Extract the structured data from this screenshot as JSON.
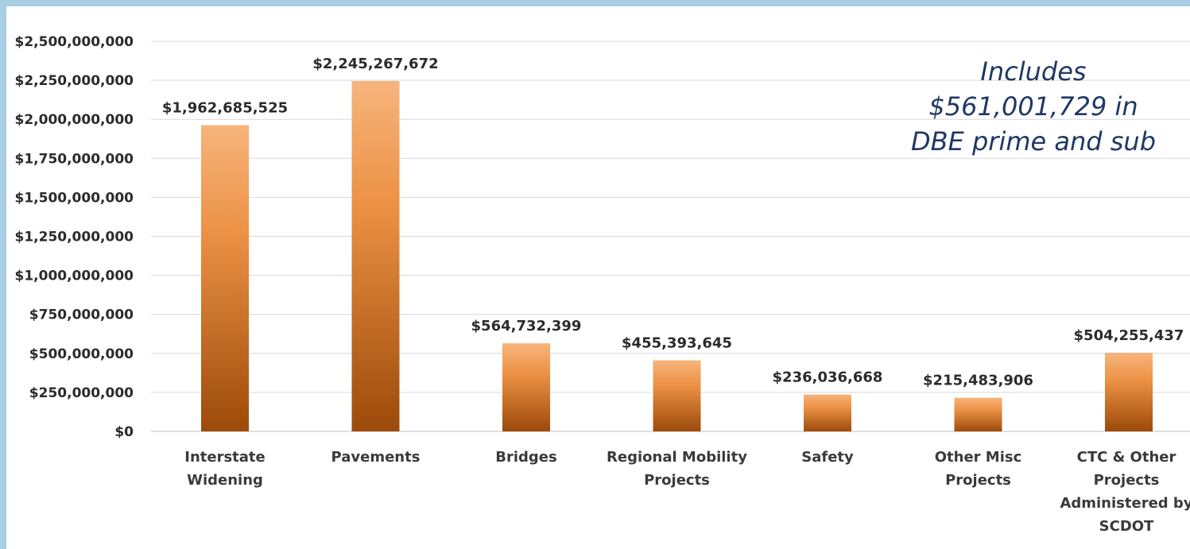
{
  "chart_data": {
    "type": "bar",
    "categories": [
      [
        "Interstate",
        "Widening"
      ],
      [
        "Pavements"
      ],
      [
        "Bridges"
      ],
      [
        "Regional Mobility",
        "Projects"
      ],
      [
        "Safety"
      ],
      [
        "Other Misc",
        "Projects"
      ],
      [
        "CTC & Other",
        "Projects",
        "Administered by",
        "SCDOT"
      ]
    ],
    "values": [
      1962685525,
      2245267672,
      564732399,
      455393645,
      236036668,
      215483906,
      504255437
    ],
    "data_labels": [
      "$1,962,685,525",
      "$2,245,267,672",
      "$564,732,399",
      "$455,393,645",
      "$236,036,668",
      "$215,483,906",
      "$504,255,437"
    ],
    "ylim": [
      0,
      2500000000
    ],
    "y_ticks": [
      0,
      250000000,
      500000000,
      750000000,
      1000000000,
      1250000000,
      1500000000,
      1750000000,
      2000000000,
      2250000000,
      2500000000
    ],
    "y_tick_labels": [
      "$0",
      "$250,000,000",
      "$500,000,000",
      "$750,000,000",
      "$1,000,000,000",
      "$1,250,000,000",
      "$1,500,000,000",
      "$1,750,000,000",
      "$2,000,000,000",
      "$2,250,000,000",
      "$2,500,000,000"
    ],
    "grid": true,
    "legend": "none",
    "bar_color_top": "#f7b47c",
    "bar_color_bottom": "#9c4a0a",
    "annotation_lines": [
      "Includes",
      "$561,001,729  in",
      "DBE prime and sub"
    ],
    "annotation_color": "#1f3864"
  }
}
